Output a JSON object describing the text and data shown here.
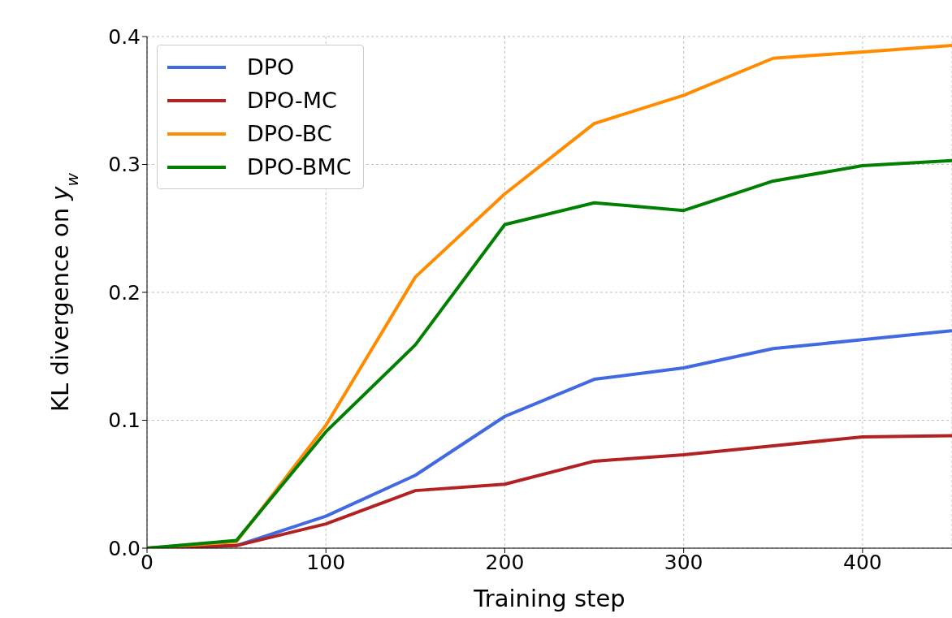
{
  "chart_data": {
    "type": "line",
    "xlabel": "Training step",
    "ylabel": "KL divergence on y$_{w}$",
    "x": [
      0,
      50,
      100,
      150,
      200,
      250,
      300,
      350,
      400,
      450
    ],
    "series": [
      {
        "name": "DPO",
        "color": "#4169e1",
        "values": [
          0,
          0.002,
          0.025,
          0.057,
          0.103,
          0.132,
          0.141,
          0.156,
          0.163,
          0.17
        ]
      },
      {
        "name": "DPO-MC",
        "color": "#b22222",
        "values": [
          0,
          0.002,
          0.019,
          0.045,
          0.05,
          0.068,
          0.073,
          0.08,
          0.087,
          0.088
        ]
      },
      {
        "name": "DPO-BC",
        "color": "#ff8c00",
        "values": [
          0,
          0.005,
          0.096,
          0.212,
          0.277,
          0.332,
          0.354,
          0.383,
          0.388,
          0.393
        ]
      },
      {
        "name": "DPO-BMC",
        "color": "#008000",
        "values": [
          0,
          0.006,
          0.091,
          0.159,
          0.253,
          0.27,
          0.264,
          0.287,
          0.299,
          0.303
        ]
      }
    ],
    "xlim": [
      0,
      450
    ],
    "xticks": [
      0,
      100,
      200,
      300,
      400
    ],
    "ylim": [
      0,
      0.4
    ],
    "yticks": [
      {
        "value": 0,
        "label": "0.0"
      },
      0.1,
      0.2,
      0.3,
      0.4
    ],
    "grid": true,
    "legend": "top left",
    "marker": "none",
    "line_style": "solid"
  }
}
